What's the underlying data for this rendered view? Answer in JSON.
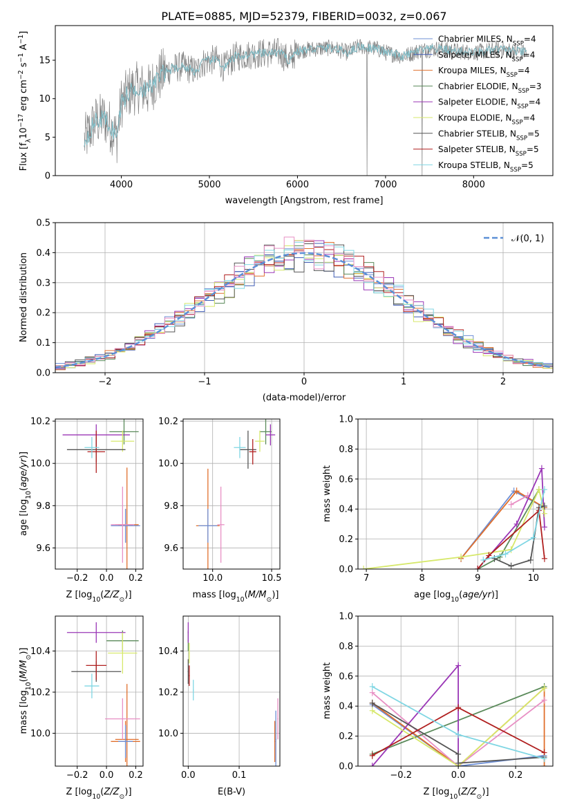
{
  "title": "PLATE=0885, MJD=52379, FIBERID=0032, z=0.067",
  "colors": {
    "chabrier_miles": "#6d8fd6",
    "salpeter_miles": "#3f5bb4",
    "kroupa_miles": "#e06f2c",
    "chabrier_elodie": "#5a8a5a",
    "salpeter_elodie": "#9a36b6",
    "kroupa_elodie": "#d6e86a",
    "chabrier_stelib": "#555555",
    "salpeter_stelib": "#b01f1f",
    "kroupa_stelib": "#7fd6e3",
    "extra_pink": "#e88fc4",
    "gauss": "#5b8fd6"
  },
  "legend_models": [
    {
      "label": "Chabrier MILES, N",
      "sub": "SSP",
      "suffix": "=4",
      "color": "#6d8fd6"
    },
    {
      "label": "Salpeter MILES, N",
      "sub": "SSP",
      "suffix": "=4",
      "color": "#3f5bb4"
    },
    {
      "label": "Kroupa MILES, N",
      "sub": "SSP",
      "suffix": "=4",
      "color": "#e06f2c"
    },
    {
      "label": "Chabrier ELODIE, N",
      "sub": "SSP",
      "suffix": "=3",
      "color": "#5a8a5a"
    },
    {
      "label": "Salpeter ELODIE, N",
      "sub": "SSP",
      "suffix": "=4",
      "color": "#9a36b6"
    },
    {
      "label": "Kroupa ELODIE, N",
      "sub": "SSP",
      "suffix": "=4",
      "color": "#d6e86a"
    },
    {
      "label": "Chabrier STELIB, N",
      "sub": "SSP",
      "suffix": "=5",
      "color": "#555555"
    },
    {
      "label": "Salpeter STELIB, N",
      "sub": "SSP",
      "suffix": "=5",
      "color": "#b01f1f"
    },
    {
      "label": "Kroupa STELIB, N",
      "sub": "SSP",
      "suffix": "=5",
      "color": "#7fd6e3"
    }
  ],
  "chart_data": [
    {
      "id": "spectrum",
      "type": "line",
      "xlabel": "wavelength [Angstrom, rest frame]",
      "ylabel": "Flux [f",
      "ylabel_sub": "λ",
      "ylabel_mid": "10",
      "ylabel_exp": "−17",
      "ylabel_unit": " erg cm",
      "ylabel_exp2": "−2",
      "ylabel_s": " s",
      "ylabel_exp3": "−1",
      "ylabel_A": " A",
      "ylabel_exp4": "−1",
      "ylabel_end": "]",
      "xlim": [
        3250,
        8900
      ],
      "ylim": [
        0,
        19.5
      ],
      "xticks": [
        4000,
        5000,
        6000,
        7000,
        8000
      ],
      "yticks": [
        0,
        5,
        10,
        15
      ],
      "continuum": [
        [
          3580,
          4.5
        ],
        [
          3700,
          7.0
        ],
        [
          3800,
          7.5
        ],
        [
          3900,
          6.0
        ],
        [
          3950,
          5.0
        ],
        [
          4000,
          9.5
        ],
        [
          4100,
          11.0
        ],
        [
          4200,
          11.5
        ],
        [
          4300,
          11.0
        ],
        [
          4400,
          12.5
        ],
        [
          4500,
          13.5
        ],
        [
          4600,
          14.0
        ],
        [
          4700,
          14.2
        ],
        [
          4860,
          13.5
        ],
        [
          4900,
          14.5
        ],
        [
          5000,
          15.0
        ],
        [
          5100,
          15.0
        ],
        [
          5170,
          14.0
        ],
        [
          5300,
          15.5
        ],
        [
          5500,
          15.8
        ],
        [
          5800,
          16.0
        ],
        [
          5900,
          15.0
        ],
        [
          6000,
          16.2
        ],
        [
          6200,
          16.5
        ],
        [
          6400,
          16.6
        ],
        [
          6563,
          16.0
        ],
        [
          6700,
          16.8
        ],
        [
          6900,
          16.5
        ],
        [
          7000,
          16.0
        ],
        [
          7200,
          15.5
        ],
        [
          7400,
          16.3
        ],
        [
          7600,
          16.5
        ],
        [
          7800,
          16.2
        ],
        [
          8000,
          16.0
        ],
        [
          8300,
          16.4
        ],
        [
          8600,
          16.0
        ]
      ],
      "series": [
        {
          "name": "Chabrier MILES, NSSP=4"
        },
        {
          "name": "Salpeter MILES, NSSP=4"
        },
        {
          "name": "Kroupa MILES, NSSP=4"
        },
        {
          "name": "Chabrier ELODIE, NSSP=3"
        },
        {
          "name": "Salpeter ELODIE, NSSP=4"
        },
        {
          "name": "Kroupa ELODIE, NSSP=4"
        },
        {
          "name": "Chabrier STELIB, NSSP=5"
        },
        {
          "name": "Salpeter STELIB, NSSP=5"
        },
        {
          "name": "Kroupa STELIB, NSSP=5"
        }
      ]
    },
    {
      "id": "residuals",
      "type": "histogram",
      "xlabel": "(data-model)/error",
      "ylabel": "Normed distribution",
      "xlim": [
        -2.5,
        2.5
      ],
      "ylim": [
        0,
        0.5
      ],
      "xticks": [
        -2,
        -1,
        0,
        1,
        2
      ],
      "yticks": [
        0.0,
        0.1,
        0.2,
        0.3,
        0.4,
        0.5
      ],
      "bin_width": 0.1,
      "legend": "𝒩(0, 1)",
      "grid": true
    },
    {
      "id": "age_vs_Z",
      "type": "errorbar",
      "xlabel": "Z [log",
      "ylabel": "age  [log",
      "xlim": [
        -0.35,
        0.25
      ],
      "ylim": [
        9.5,
        10.21
      ],
      "xticks": [
        -0.2,
        0.0,
        0.2
      ],
      "yticks": [
        9.6,
        9.8,
        10.0,
        10.2
      ],
      "points": [
        {
          "x": 0.13,
          "y": 9.705,
          "xerr": 0.05,
          "yerr": 0.08,
          "c": "kroupa_miles"
        },
        {
          "x": 0.14,
          "y": 9.71,
          "xerr": 0.08,
          "yerr": 0.27,
          "c": "kroupa_miles"
        },
        {
          "x": 0.13,
          "y": 9.705,
          "xerr": 0.1,
          "yerr": 0.08,
          "c": "chabrier_miles"
        },
        {
          "x": 0.11,
          "y": 9.71,
          "xerr": 0.08,
          "yerr": 0.18,
          "c": "extra_pink"
        },
        {
          "x": 0.12,
          "y": 10.15,
          "xerr": 0.1,
          "yerr": 0.06,
          "c": "chabrier_elodie"
        },
        {
          "x": -0.07,
          "y": 10.135,
          "xerr": 0.23,
          "yerr": 0.05,
          "c": "salpeter_elodie"
        },
        {
          "x": 0.11,
          "y": 10.105,
          "xerr": 0.08,
          "yerr": 0.05,
          "c": "kroupa_elodie"
        },
        {
          "x": -0.07,
          "y": 10.065,
          "xerr": 0.2,
          "yerr": 0.06,
          "c": "chabrier_stelib"
        },
        {
          "x": -0.07,
          "y": 10.055,
          "xerr": 0.06,
          "yerr": 0.1,
          "c": "salpeter_stelib"
        },
        {
          "x": -0.1,
          "y": 10.075,
          "xerr": 0.05,
          "yerr": 0.05,
          "c": "kroupa_stelib"
        }
      ]
    },
    {
      "id": "age_vs_mass",
      "type": "errorbar",
      "xlabel": "mass [log",
      "xlim": [
        9.75,
        10.57
      ],
      "ylim": [
        9.5,
        10.21
      ],
      "xticks": [
        10.0,
        10.5
      ],
      "yticks": [
        9.6,
        9.8,
        10.0,
        10.2
      ],
      "points": [
        {
          "x": 9.96,
          "y": 9.705,
          "xerr": 0.1,
          "yerr": 0.27,
          "c": "kroupa_miles"
        },
        {
          "x": 9.96,
          "y": 9.705,
          "xerr": 0.08,
          "yerr": 0.08,
          "c": "chabrier_miles"
        },
        {
          "x": 10.07,
          "y": 9.71,
          "xerr": 0.03,
          "yerr": 0.18,
          "c": "extra_pink"
        },
        {
          "x": 10.45,
          "y": 10.15,
          "xerr": 0.05,
          "yerr": 0.06,
          "c": "chabrier_elodie"
        },
        {
          "x": 10.49,
          "y": 10.135,
          "xerr": 0.04,
          "yerr": 0.05,
          "c": "salpeter_elodie"
        },
        {
          "x": 10.4,
          "y": 10.105,
          "xerr": 0.04,
          "yerr": 0.05,
          "c": "kroupa_elodie"
        },
        {
          "x": 10.3,
          "y": 10.065,
          "xerr": 0.07,
          "yerr": 0.09,
          "c": "chabrier_stelib"
        },
        {
          "x": 10.34,
          "y": 10.055,
          "xerr": 0.03,
          "yerr": 0.06,
          "c": "salpeter_stelib"
        },
        {
          "x": 10.23,
          "y": 10.075,
          "xerr": 0.05,
          "yerr": 0.05,
          "c": "kroupa_stelib"
        }
      ]
    },
    {
      "id": "mass_weight_vs_age",
      "type": "line",
      "xlabel": "age  [log",
      "ylabel": "mass weight",
      "xlim": [
        6.85,
        10.35
      ],
      "ylim": [
        0,
        1.0
      ],
      "xticks": [
        7,
        8,
        9,
        10
      ],
      "yticks": [
        0.0,
        0.2,
        0.4,
        0.6,
        0.8,
        1.0
      ],
      "series": [
        {
          "c": "chabrier_miles",
          "pts": [
            [
              8.7,
              0.07
            ],
            [
              9.65,
              0.52
            ],
            [
              10.2,
              0.41
            ]
          ]
        },
        {
          "c": "kroupa_miles",
          "pts": [
            [
              8.7,
              0.07
            ],
            [
              9.7,
              0.52
            ],
            [
              10.2,
              0.41
            ]
          ]
        },
        {
          "c": "extra_pink",
          "pts": [
            [
              9.6,
              0.43
            ],
            [
              9.9,
              0.49
            ]
          ]
        },
        {
          "c": "chabrier_elodie",
          "pts": [
            [
              9.0,
              0.0
            ],
            [
              9.4,
              0.08
            ],
            [
              10.1,
              0.53
            ]
          ]
        },
        {
          "c": "salpeter_elodie",
          "pts": [
            [
              9.0,
              0.0
            ],
            [
              9.7,
              0.3
            ],
            [
              10.15,
              0.67
            ],
            [
              10.2,
              0.28
            ]
          ]
        },
        {
          "c": "kroupa_elodie",
          "pts": [
            [
              6.95,
              0.0
            ],
            [
              8.7,
              0.08
            ],
            [
              9.6,
              0.13
            ],
            [
              10.1,
              0.53
            ],
            [
              10.2,
              0.37
            ]
          ]
        },
        {
          "c": "chabrier_stelib",
          "pts": [
            [
              9.3,
              0.07
            ],
            [
              9.6,
              0.02
            ],
            [
              9.95,
              0.06
            ],
            [
              10.1,
              0.41
            ],
            [
              10.2,
              0.42
            ]
          ]
        },
        {
          "c": "salpeter_stelib",
          "pts": [
            [
              9.0,
              0.0
            ],
            [
              9.2,
              0.09
            ],
            [
              10.1,
              0.39
            ],
            [
              10.2,
              0.07
            ]
          ]
        },
        {
          "c": "kroupa_stelib",
          "pts": [
            [
              9.1,
              0.06
            ],
            [
              9.5,
              0.1
            ],
            [
              10.0,
              0.21
            ],
            [
              10.2,
              0.53
            ]
          ]
        }
      ]
    },
    {
      "id": "mass_vs_Z",
      "type": "errorbar",
      "xlabel": "Z [log",
      "ylabel": "mass [log",
      "xlim": [
        -0.35,
        0.25
      ],
      "ylim": [
        9.84,
        10.57
      ],
      "xticks": [
        -0.2,
        0.0,
        0.2
      ],
      "yticks": [
        10.0,
        10.2,
        10.4
      ],
      "points": [
        {
          "x": 0.13,
          "y": 9.96,
          "xerr": 0.1,
          "yerr": 0.1,
          "c": "kroupa_miles"
        },
        {
          "x": 0.14,
          "y": 9.97,
          "xerr": 0.08,
          "yerr": 0.27,
          "c": "kroupa_miles"
        },
        {
          "x": 0.13,
          "y": 9.96,
          "xerr": 0.05,
          "yerr": 0.08,
          "c": "chabrier_miles"
        },
        {
          "x": 0.11,
          "y": 10.07,
          "xerr": 0.12,
          "yerr": 0.1,
          "c": "extra_pink"
        },
        {
          "x": 0.11,
          "y": 10.45,
          "xerr": 0.11,
          "yerr": 0.05,
          "c": "chabrier_elodie"
        },
        {
          "x": -0.07,
          "y": 10.49,
          "xerr": 0.2,
          "yerr": 0.05,
          "c": "salpeter_elodie"
        },
        {
          "x": 0.11,
          "y": 10.39,
          "xerr": 0.1,
          "yerr": 0.1,
          "c": "kroupa_elodie"
        },
        {
          "x": -0.07,
          "y": 10.3,
          "xerr": 0.17,
          "yerr": 0.05,
          "c": "chabrier_stelib"
        },
        {
          "x": -0.07,
          "y": 10.33,
          "xerr": 0.07,
          "yerr": 0.07,
          "c": "salpeter_stelib"
        },
        {
          "x": -0.1,
          "y": 10.23,
          "xerr": 0.05,
          "yerr": 0.06,
          "c": "kroupa_stelib"
        }
      ]
    },
    {
      "id": "mass_vs_EBV",
      "type": "errorbar",
      "xlabel": "E(B-V)",
      "xlim": [
        -0.01,
        0.18
      ],
      "ylim": [
        9.84,
        10.57
      ],
      "xticks": [
        0.0,
        0.1
      ],
      "yticks": [
        10.0,
        10.2,
        10.4
      ],
      "points": [
        {
          "x": 0.17,
          "y": 9.96,
          "xerr": 0.001,
          "yerr": 0.1,
          "c": "kroupa_miles"
        },
        {
          "x": 0.172,
          "y": 9.97,
          "xerr": 0.001,
          "yerr": 0.14,
          "c": "chabrier_miles"
        },
        {
          "x": 0.176,
          "y": 10.07,
          "xerr": 0.001,
          "yerr": 0.1,
          "c": "extra_pink"
        },
        {
          "x": 0.0,
          "y": 10.45,
          "xerr": 0.001,
          "yerr": 0.05,
          "c": "chabrier_elodie"
        },
        {
          "x": 0.0,
          "y": 10.49,
          "xerr": 0.001,
          "yerr": 0.05,
          "c": "salpeter_elodie"
        },
        {
          "x": 0.002,
          "y": 10.39,
          "xerr": 0.001,
          "yerr": 0.05,
          "c": "kroupa_elodie"
        },
        {
          "x": 0.0,
          "y": 10.3,
          "xerr": 0.001,
          "yerr": 0.06,
          "c": "chabrier_stelib"
        },
        {
          "x": 0.002,
          "y": 10.28,
          "xerr": 0.001,
          "yerr": 0.05,
          "c": "salpeter_stelib"
        },
        {
          "x": 0.01,
          "y": 10.21,
          "xerr": 0.001,
          "yerr": 0.05,
          "c": "kroupa_stelib"
        }
      ]
    },
    {
      "id": "mass_weight_vs_Z",
      "type": "line",
      "xlabel": "Z [log",
      "ylabel": "mass weight",
      "xlim": [
        -0.35,
        0.33
      ],
      "ylim": [
        0,
        1.0
      ],
      "xticks": [
        -0.2,
        0.0,
        0.2
      ],
      "yticks": [
        0.0,
        0.2,
        0.4,
        0.6,
        0.8,
        1.0
      ],
      "series": [
        {
          "c": "chabrier_miles",
          "pts": [
            [
              -0.3,
              0.41
            ],
            [
              0.0,
              0.0
            ],
            [
              0.3,
              0.07
            ]
          ]
        },
        {
          "c": "kroupa_miles",
          "pts": [
            [
              -0.3,
              0.42
            ],
            [
              0.0,
              0.0
            ],
            [
              0.3,
              0.52
            ],
            [
              0.3,
              0.0
            ]
          ]
        },
        {
          "c": "extra_pink",
          "pts": [
            [
              -0.3,
              0.49
            ],
            [
              0.0,
              0.0
            ],
            [
              0.3,
              0.44
            ]
          ]
        },
        {
          "c": "chabrier_elodie",
          "pts": [
            [
              -0.3,
              0.08
            ],
            [
              0.3,
              0.53
            ]
          ]
        },
        {
          "c": "salpeter_elodie",
          "pts": [
            [
              -0.3,
              0.0
            ],
            [
              0.0,
              0.67
            ],
            [
              0.0,
              0.0
            ]
          ]
        },
        {
          "c": "kroupa_elodie",
          "pts": [
            [
              -0.3,
              0.37
            ],
            [
              0.0,
              0.0
            ],
            [
              0.3,
              0.52
            ]
          ]
        },
        {
          "c": "chabrier_stelib",
          "pts": [
            [
              -0.3,
              0.42
            ],
            [
              0.0,
              0.08
            ],
            [
              0.0,
              0.02
            ],
            [
              0.3,
              0.06
            ]
          ]
        },
        {
          "c": "salpeter_stelib",
          "pts": [
            [
              -0.3,
              0.07
            ],
            [
              0.0,
              0.39
            ],
            [
              0.3,
              0.09
            ]
          ]
        },
        {
          "c": "kroupa_stelib",
          "pts": [
            [
              -0.3,
              0.53
            ],
            [
              0.0,
              0.21
            ],
            [
              0.3,
              0.05
            ]
          ]
        }
      ]
    }
  ]
}
